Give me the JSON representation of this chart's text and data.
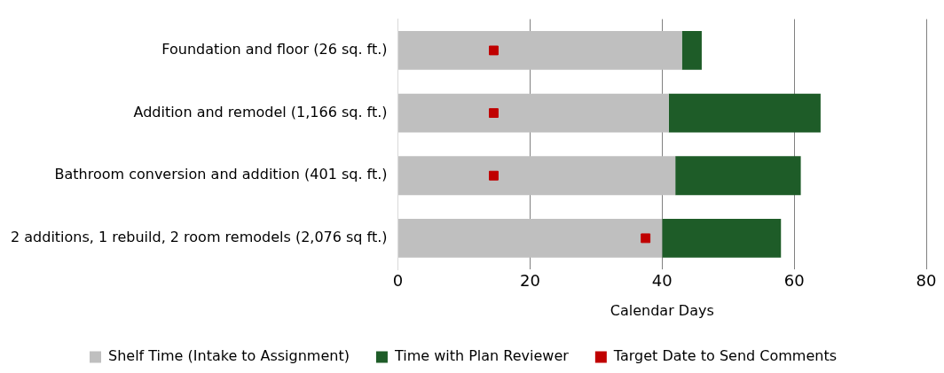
{
  "chart_data": {
    "type": "bar",
    "orientation": "horizontal",
    "stacked": true,
    "categories": [
      "Foundation and floor (26 sq. ft.)",
      "Addition and remodel (1,166 sq. ft.)",
      "Bathroom conversion and addition (401 sq. ft.)",
      "2 additions, 1 rebuild, 2 room remodels (2,076 sq ft.)"
    ],
    "series": [
      {
        "name": "Shelf Time (Intake to Assignment)",
        "color": "#bfbfbf",
        "values": [
          43,
          41,
          42,
          40
        ]
      },
      {
        "name": "Time with Plan Reviewer",
        "color": "#1e5c28",
        "values": [
          3,
          23,
          19,
          18
        ]
      },
      {
        "name": "Target Date to Send Comments",
        "color": "#c00000",
        "type": "scatter",
        "values": [
          14.5,
          14.5,
          14.5,
          37.5
        ]
      }
    ],
    "xlabel": "Calendar Days",
    "xlim": [
      0,
      80
    ],
    "xticks": [
      0,
      20,
      40,
      60,
      80
    ],
    "grid": "x",
    "legend": "bottom"
  }
}
